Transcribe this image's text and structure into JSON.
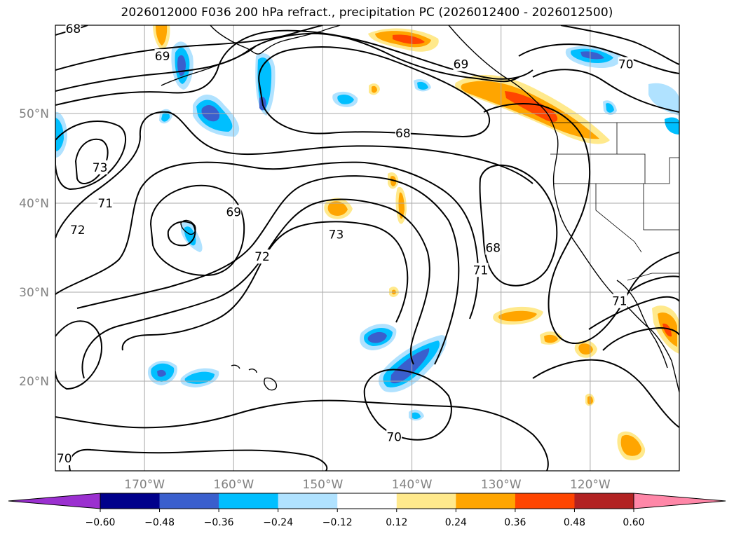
{
  "title": "2026012000 F036 200 hPa refract., precipitation PC (2026012400 - 2026012500)",
  "map": {
    "lat_range": [
      10,
      60
    ],
    "lon_range": [
      -180,
      -110
    ],
    "lat_labels": [
      "50°N",
      "40°N",
      "30°N",
      "20°N"
    ],
    "lat_values": [
      50,
      40,
      30,
      20
    ],
    "lon_labels": [
      "170°W",
      "160°W",
      "150°W",
      "140°W",
      "130°W",
      "120°W"
    ],
    "lon_values": [
      -170,
      -160,
      -150,
      -140,
      -130,
      -120
    ],
    "contour_labels": [
      {
        "text": "68",
        "lon": -178,
        "lat": 59.6
      },
      {
        "text": "69",
        "lon": -168,
        "lat": 56.5
      },
      {
        "text": "69",
        "lon": -134.5,
        "lat": 55.6
      },
      {
        "text": "70",
        "lon": -116,
        "lat": 55.6
      },
      {
        "text": "68",
        "lon": -141,
        "lat": 47.8
      },
      {
        "text": "73",
        "lon": -175,
        "lat": 44.0
      },
      {
        "text": "71",
        "lon": -174.4,
        "lat": 40.0
      },
      {
        "text": "69",
        "lon": -160,
        "lat": 39.0
      },
      {
        "text": "72",
        "lon": -177.5,
        "lat": 37.0
      },
      {
        "text": "73",
        "lon": -148.5,
        "lat": 36.5
      },
      {
        "text": "68",
        "lon": -130.9,
        "lat": 35.0
      },
      {
        "text": "72",
        "lon": -156.8,
        "lat": 34.0
      },
      {
        "text": "71",
        "lon": -132.3,
        "lat": 32.5
      },
      {
        "text": "71",
        "lon": -116.7,
        "lat": 29.0
      },
      {
        "text": "70",
        "lon": -142,
        "lat": 13.8
      },
      {
        "text": "70",
        "lon": -179,
        "lat": 11.4
      }
    ],
    "colors": {
      "purple": "#9b30d0",
      "navy": "#00008b",
      "royal": "#3a5fcd",
      "deepsky": "#00bfff",
      "lightblue": "#b0e2ff",
      "white": "#ffffff",
      "khaki": "#ffe98c",
      "orange": "#ffa500",
      "orangered": "#ff4500",
      "firebrick": "#b22222",
      "pink": "#ff87a8"
    }
  },
  "colorbar": {
    "labels": [
      "−0.60",
      "−0.48",
      "−0.36",
      "−0.24",
      "−0.12",
      "0.12",
      "0.24",
      "0.36",
      "0.48",
      "0.60"
    ],
    "values": [
      -0.6,
      -0.48,
      -0.36,
      -0.24,
      -0.12,
      0.12,
      0.24,
      0.36,
      0.48,
      0.6
    ],
    "colors": [
      "#9b30d0",
      "#00008b",
      "#3a5fcd",
      "#00bfff",
      "#b0e2ff",
      "#ffffff",
      "#ffe98c",
      "#ffa500",
      "#ff4500",
      "#b22222",
      "#ff87a8"
    ]
  }
}
